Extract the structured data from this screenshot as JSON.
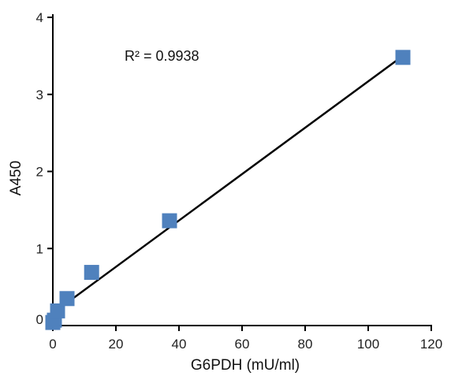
{
  "chart_data": {
    "type": "scatter",
    "title": "",
    "xlabel": "G6PDH (mU/ml)",
    "ylabel": "A450",
    "xlim": [
      0,
      120
    ],
    "ylim": [
      0,
      4
    ],
    "x_ticks": [
      "0",
      "20",
      "40",
      "60",
      "80",
      "100",
      "120"
    ],
    "y_ticks": [
      "0",
      "1",
      "2",
      "3",
      "4"
    ],
    "grid": false,
    "legend": "none",
    "series": [
      {
        "marker": "square",
        "color": "#4f81bd",
        "x": [
          0,
          0.5,
          1.5,
          4.5,
          12.3,
          37,
          111
        ],
        "y": [
          0.04,
          0.07,
          0.19,
          0.35,
          0.69,
          1.36,
          3.48
        ]
      }
    ],
    "trendline": {
      "type": "linear",
      "color": "#000000",
      "x": [
        0,
        111
      ],
      "y": [
        0.16,
        3.5
      ]
    },
    "annotation": "R² = 0.9938"
  }
}
